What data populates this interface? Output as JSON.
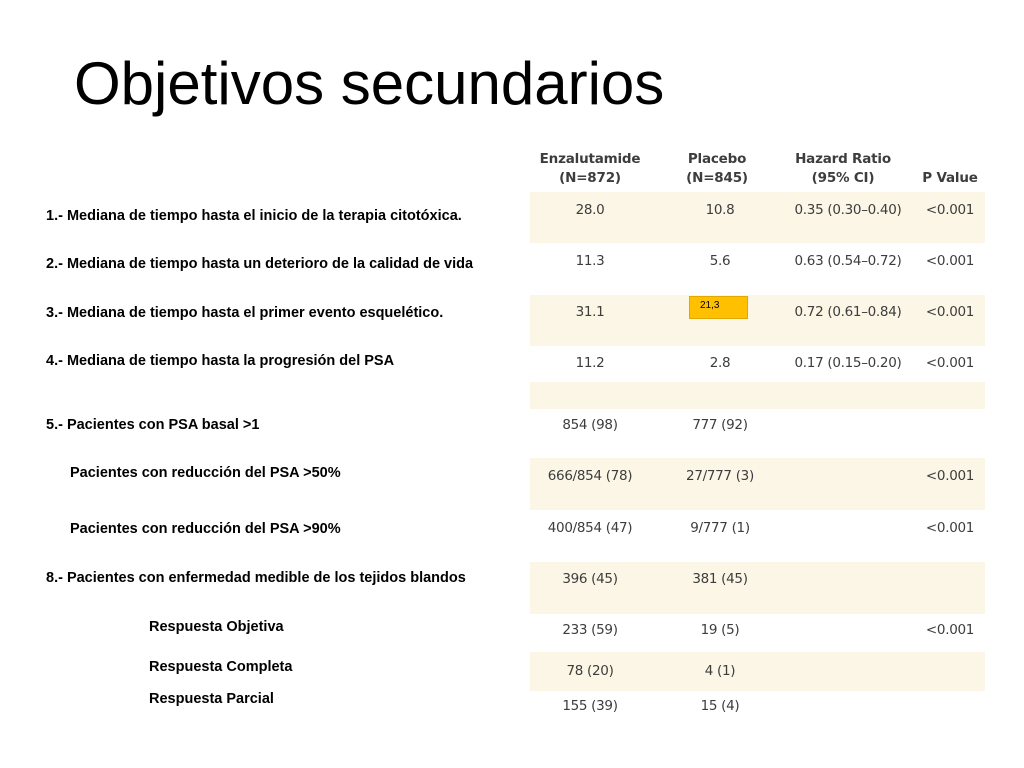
{
  "title": "Objetivos secundarios",
  "table": {
    "headers": {
      "enzalutamide": [
        "Enzalutamide",
        "(N=872)"
      ],
      "placebo": [
        "Placebo",
        "(N=845)"
      ],
      "hazard_ratio": [
        "Hazard Ratio",
        "(95% CI)"
      ],
      "p_value": [
        "P Value"
      ]
    },
    "rows": [
      {
        "label": "1.- Mediana de tiempo hasta el inicio de la terapia citotóxica.",
        "enzalutamide": "28.0",
        "placebo": "10.8",
        "hazard_ratio": "0.35 (0.30–0.40)",
        "p_value": "<0.001"
      },
      {
        "label": "2.- Mediana de tiempo hasta un deterioro de la calidad de vida",
        "enzalutamide": "11.3",
        "placebo": "5.6",
        "hazard_ratio": "0.63 (0.54–0.72)",
        "p_value": "<0.001"
      },
      {
        "label": "3.- Mediana de tiempo hasta el primer evento esquelético.",
        "enzalutamide": "31.1",
        "placebo": "",
        "hazard_ratio": "0.72 (0.61–0.84)",
        "p_value": "<0.001"
      },
      {
        "label": "4.- Mediana de tiempo hasta la progresión del PSA",
        "enzalutamide": "11.2",
        "placebo": "2.8",
        "hazard_ratio": "0.17 (0.15–0.20)",
        "p_value": "<0.001"
      },
      {
        "label": "5.- Pacientes con PSA basal >1",
        "enzalutamide": "854 (98)",
        "placebo": "777 (92)",
        "hazard_ratio": "",
        "p_value": ""
      },
      {
        "label": "Pacientes con reducción del PSA >50%",
        "enzalutamide": "666/854 (78)",
        "placebo": "27/777 (3)",
        "hazard_ratio": "",
        "p_value": "<0.001"
      },
      {
        "label": "Pacientes con reducción del PSA >90%",
        "enzalutamide": "400/854 (47)",
        "placebo": "9/777 (1)",
        "hazard_ratio": "",
        "p_value": "<0.001"
      },
      {
        "label": "8.- Pacientes con enfermedad medible de los tejidos blandos",
        "enzalutamide": "396 (45)",
        "placebo": "381 (45)",
        "hazard_ratio": "",
        "p_value": ""
      },
      {
        "label": "Respuesta Objetiva",
        "enzalutamide": "233 (59)",
        "placebo": "19 (5)",
        "hazard_ratio": "",
        "p_value": "<0.001"
      },
      {
        "label": "Respuesta Completa",
        "enzalutamide": "78 (20)",
        "placebo": "4 (1)",
        "hazard_ratio": "",
        "p_value": ""
      },
      {
        "label": "Respuesta Parcial",
        "enzalutamide": "155 (39)",
        "placebo": "15 (4)",
        "hazard_ratio": "",
        "p_value": ""
      }
    ],
    "highlight_note": "21,3"
  },
  "colors": {
    "band": "#fbf6e6",
    "highlight": "#ffc000",
    "table_text": "#3d3d3d"
  }
}
